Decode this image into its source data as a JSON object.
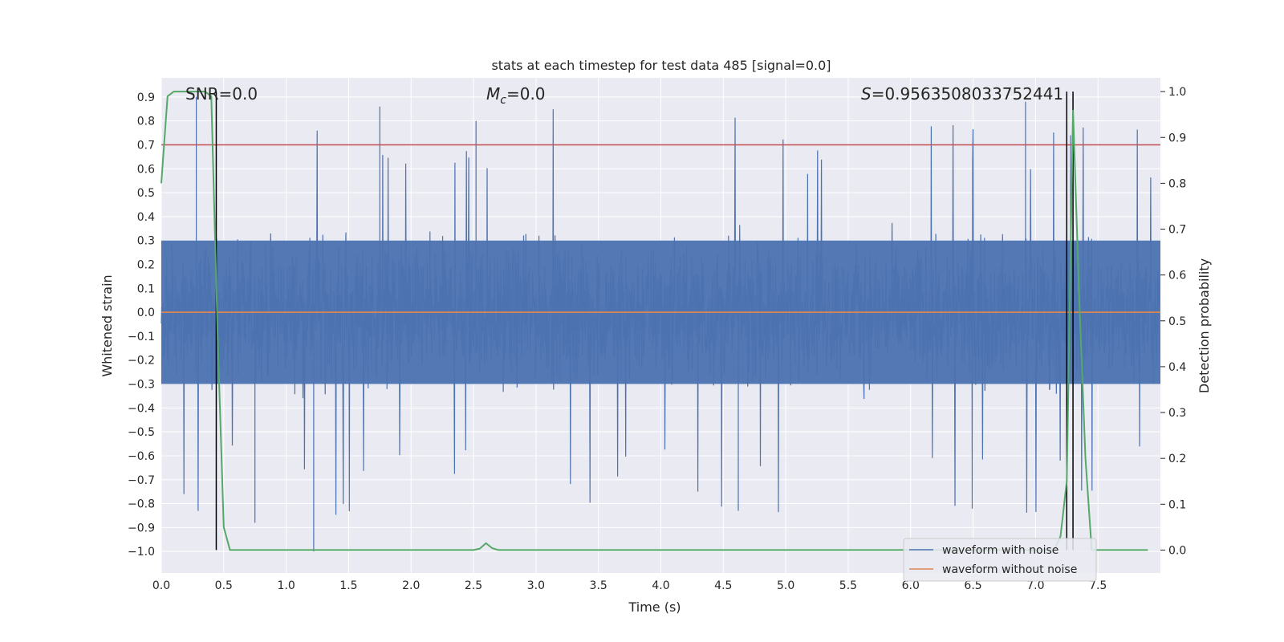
{
  "chart_data": {
    "type": "line",
    "title": "stats at each timestep for test data 485 [signal=0.0]",
    "xlabel": "Time (s)",
    "ylabel": "Whitened strain",
    "ylabel_right": "Detection probability",
    "xlim": [
      0.0,
      8.0
    ],
    "ylim": [
      -1.09,
      0.98
    ],
    "ylim_right": [
      -0.05,
      1.03
    ],
    "x_ticks": [
      0.0,
      0.5,
      1.0,
      1.5,
      2.0,
      2.5,
      3.0,
      3.5,
      4.0,
      4.5,
      5.0,
      5.5,
      6.0,
      6.5,
      7.0,
      7.5
    ],
    "x_tick_labels": [
      "0.0",
      "0.5",
      "1.0",
      "1.5",
      "2.0",
      "2.5",
      "3.0",
      "3.5",
      "4.0",
      "4.5",
      "5.0",
      "5.5",
      "6.0",
      "6.5",
      "7.0",
      "7.5"
    ],
    "y_ticks": [
      0.9,
      0.8,
      0.7,
      0.6,
      0.5,
      0.4,
      0.3,
      0.2,
      0.1,
      0.0,
      -0.1,
      -0.2,
      -0.3,
      -0.4,
      -0.5,
      -0.6,
      -0.7,
      -0.8,
      -0.9,
      -1.0
    ],
    "y_tick_labels": [
      "0.9",
      "0.8",
      "0.7",
      "0.6",
      "0.5",
      "0.4",
      "0.3",
      "0.2",
      "0.1",
      "0.0",
      "−0.1",
      "−0.2",
      "−0.3",
      "−0.4",
      "−0.5",
      "−0.6",
      "−0.7",
      "−0.8",
      "−0.9",
      "−1.0"
    ],
    "y_right_ticks": [
      1.0,
      0.9,
      0.8,
      0.7,
      0.6,
      0.5,
      0.4,
      0.3,
      0.2,
      0.1,
      0.0
    ],
    "y_right_tick_labels": [
      "1.0",
      "0.9",
      "0.8",
      "0.7",
      "0.6",
      "0.5",
      "0.4",
      "0.3",
      "0.2",
      "0.1",
      "0.0"
    ],
    "annotations": {
      "snr_label": "SNR=0.0",
      "mc_symbol": "M",
      "mc_sub": "c",
      "mc_value": "=0.0",
      "s_symbol": "S",
      "s_value": "=0.9563508033752441"
    },
    "series": [
      {
        "name": "waveform with noise",
        "color": "#4c72b0",
        "kind": "noise",
        "typical_amplitude": 0.33,
        "spike_max": 0.9,
        "spike_min": -1.0
      },
      {
        "name": "waveform without noise",
        "color": "#dd8452",
        "kind": "constant",
        "value": 0.0
      }
    ],
    "threshold": {
      "value": 0.7,
      "color": "#c44e52"
    },
    "detection_probability": {
      "color": "#55a868",
      "x": [
        0.0,
        0.05,
        0.1,
        0.15,
        0.2,
        0.25,
        0.3,
        0.35,
        0.4,
        0.45,
        0.5,
        0.55,
        0.6,
        1.0,
        1.5,
        2.0,
        2.5,
        2.55,
        2.6,
        2.65,
        2.7,
        2.75,
        3.0,
        4.0,
        5.0,
        6.0,
        7.0,
        7.15,
        7.2,
        7.25,
        7.3,
        7.35,
        7.4,
        7.45,
        7.5,
        7.6,
        7.9
      ],
      "y": [
        0.8,
        0.99,
        1.0,
        1.0,
        1.0,
        1.0,
        1.0,
        1.0,
        0.99,
        0.48,
        0.05,
        0.0,
        0.0,
        0.0,
        0.0,
        0.0,
        0.0,
        0.003,
        0.015,
        0.004,
        0.0,
        0.0,
        0.0,
        0.0,
        0.0,
        0.0,
        0.0,
        0.0,
        0.03,
        0.15,
        0.96,
        0.55,
        0.2,
        0.0,
        0.0,
        0.0,
        0.0
      ]
    },
    "vertical_lines": [
      0.44,
      7.25,
      7.3
    ],
    "vertical_line_color": "#000000",
    "grid": true,
    "legend_position": "lower-right"
  }
}
